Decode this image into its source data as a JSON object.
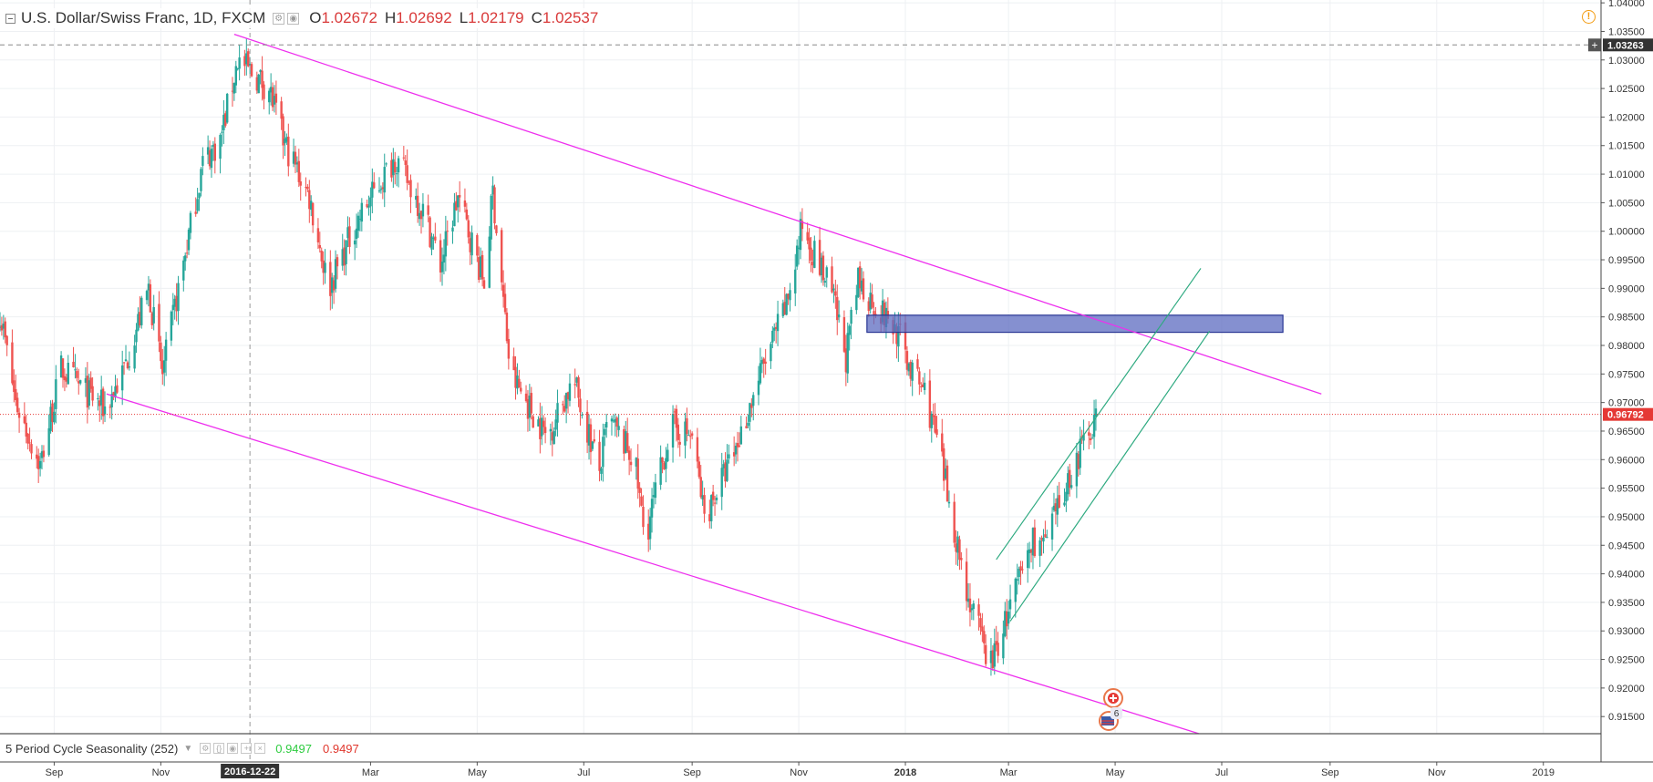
{
  "header": {
    "symbol_title": "U.S. Dollar/Swiss Franc, 1D, FXCM",
    "ohlc": [
      {
        "key": "O",
        "value": "1.02672"
      },
      {
        "key": "H",
        "value": "1.02692"
      },
      {
        "key": "L",
        "value": "1.02179"
      },
      {
        "key": "C",
        "value": "1.02537"
      }
    ]
  },
  "warning_icon": {
    "glyph": "!",
    "icon": "exclamation-circle-icon",
    "color": "#f39c12"
  },
  "indicator": {
    "name": "5 Period Cycle Seasonality (252)",
    "value1": "0.9497",
    "value2": "0.9497"
  },
  "crosshair": {
    "date_label": "2016-12-22",
    "price_label": "1.03263"
  },
  "last_price": {
    "label": "0.96792",
    "value": 0.96792,
    "color": "#e53935"
  },
  "colors": {
    "up": "#26a69a",
    "down": "#ef5350",
    "trendline": "#ee2fee",
    "channel": "#2eaa80",
    "zone_fill": "#5c6bc0",
    "zone_stroke": "#283593"
  },
  "chart_data": {
    "type": "candlestick",
    "instrument": "U.S. Dollar/Swiss Franc",
    "timeframe": "1D",
    "source": "FXCM",
    "y_axis": {
      "min": 0.912,
      "max": 1.0405,
      "ticks": [
        "1.04000",
        "1.03500",
        "1.03000",
        "1.02500",
        "1.02000",
        "1.01500",
        "1.01000",
        "1.00500",
        "1.00000",
        "0.99500",
        "0.99000",
        "0.98500",
        "0.98000",
        "0.97500",
        "0.97000",
        "0.96500",
        "0.96000",
        "0.95500",
        "0.95000",
        "0.94500",
        "0.94000",
        "0.93500",
        "0.93000",
        "0.92500",
        "0.92000",
        "0.91500"
      ]
    },
    "x_axis": {
      "start": "2016-08-01",
      "end": "2019-02-03",
      "ticks": [
        {
          "label": "Sep",
          "date": "2016-09-01"
        },
        {
          "label": "Nov",
          "date": "2016-11-01"
        },
        {
          "label": "Mar",
          "date": "2017-03-01"
        },
        {
          "label": "May",
          "date": "2017-05-01"
        },
        {
          "label": "Jul",
          "date": "2017-07-01"
        },
        {
          "label": "Sep",
          "date": "2017-09-01"
        },
        {
          "label": "Nov",
          "date": "2017-11-01"
        },
        {
          "label": "2018",
          "date": "2018-01-01",
          "bold": true
        },
        {
          "label": "Mar",
          "date": "2018-03-01"
        },
        {
          "label": "May",
          "date": "2018-05-01"
        },
        {
          "label": "Jul",
          "date": "2018-07-01"
        },
        {
          "label": "Sep",
          "date": "2018-09-01"
        },
        {
          "label": "Nov",
          "date": "2018-11-01"
        },
        {
          "label": "2019",
          "date": "2019-01-01"
        }
      ]
    },
    "price_path": [
      [
        "2016-08-01",
        0.986
      ],
      [
        "2016-08-10",
        0.97
      ],
      [
        "2016-08-24",
        0.959
      ],
      [
        "2016-09-05",
        0.976
      ],
      [
        "2016-09-15",
        0.973
      ],
      [
        "2016-09-30",
        0.969
      ],
      [
        "2016-10-10",
        0.975
      ],
      [
        "2016-10-25",
        0.99
      ],
      [
        "2016-11-02",
        0.975
      ],
      [
        "2016-11-08",
        0.985
      ],
      [
        "2016-11-25",
        1.012
      ],
      [
        "2016-12-05",
        1.016
      ],
      [
        "2016-12-15",
        1.03
      ],
      [
        "2017-01-02",
        1.025
      ],
      [
        "2017-01-10",
        1.016
      ],
      [
        "2017-01-25",
        1.006
      ],
      [
        "2017-02-05",
        0.99
      ],
      [
        "2017-02-20",
        1.001
      ],
      [
        "2017-03-15",
        1.013
      ],
      [
        "2017-04-01",
        1.003
      ],
      [
        "2017-04-10",
        0.994
      ],
      [
        "2017-04-20",
        1.006
      ],
      [
        "2017-05-01",
        0.995
      ],
      [
        "2017-05-05",
        0.991
      ],
      [
        "2017-05-10",
        1.007
      ],
      [
        "2017-05-20",
        0.975
      ],
      [
        "2017-06-10",
        0.964
      ],
      [
        "2017-06-25",
        0.974
      ],
      [
        "2017-07-10",
        0.958
      ],
      [
        "2017-07-15",
        0.967
      ],
      [
        "2017-07-30",
        0.96
      ],
      [
        "2017-08-05",
        0.946
      ],
      [
        "2017-08-20",
        0.966
      ],
      [
        "2017-09-01",
        0.964
      ],
      [
        "2017-09-08",
        0.95
      ],
      [
        "2017-09-25",
        0.961
      ],
      [
        "2017-10-10",
        0.975
      ],
      [
        "2017-10-25",
        0.987
      ],
      [
        "2017-11-03",
        1.001
      ],
      [
        "2017-11-20",
        0.989
      ],
      [
        "2017-11-28",
        0.978
      ],
      [
        "2017-12-05",
        0.991
      ],
      [
        "2017-12-28",
        0.982
      ],
      [
        "2018-01-05",
        0.975
      ],
      [
        "2018-01-12",
        0.972
      ],
      [
        "2018-01-20",
        0.962
      ],
      [
        "2018-02-05",
        0.937
      ],
      [
        "2018-02-16",
        0.926
      ],
      [
        "2018-02-20",
        0.925
      ],
      [
        "2018-03-05",
        0.937
      ],
      [
        "2018-03-15",
        0.946
      ],
      [
        "2018-03-22",
        0.945
      ],
      [
        "2018-04-05",
        0.957
      ],
      [
        "2018-04-20",
        0.968
      ]
    ],
    "drawings": {
      "upper_trendline": [
        [
          "2016-12-13",
          1.0345
        ],
        [
          "2018-08-27",
          0.9715
        ]
      ],
      "lower_trendline": [
        [
          "2016-10-01",
          0.9715
        ],
        [
          "2018-06-18",
          0.912
        ]
      ],
      "channel_upper": [
        [
          "2018-02-22",
          0.9425
        ],
        [
          "2018-06-19",
          0.9935
        ]
      ],
      "channel_lower": [
        [
          "2018-03-02",
          0.9317
        ],
        [
          "2018-06-24",
          0.9825
        ]
      ],
      "zone": {
        "from": "2017-12-10",
        "to": "2018-08-05",
        "top": 0.9853,
        "bottom": 0.9823
      }
    }
  }
}
